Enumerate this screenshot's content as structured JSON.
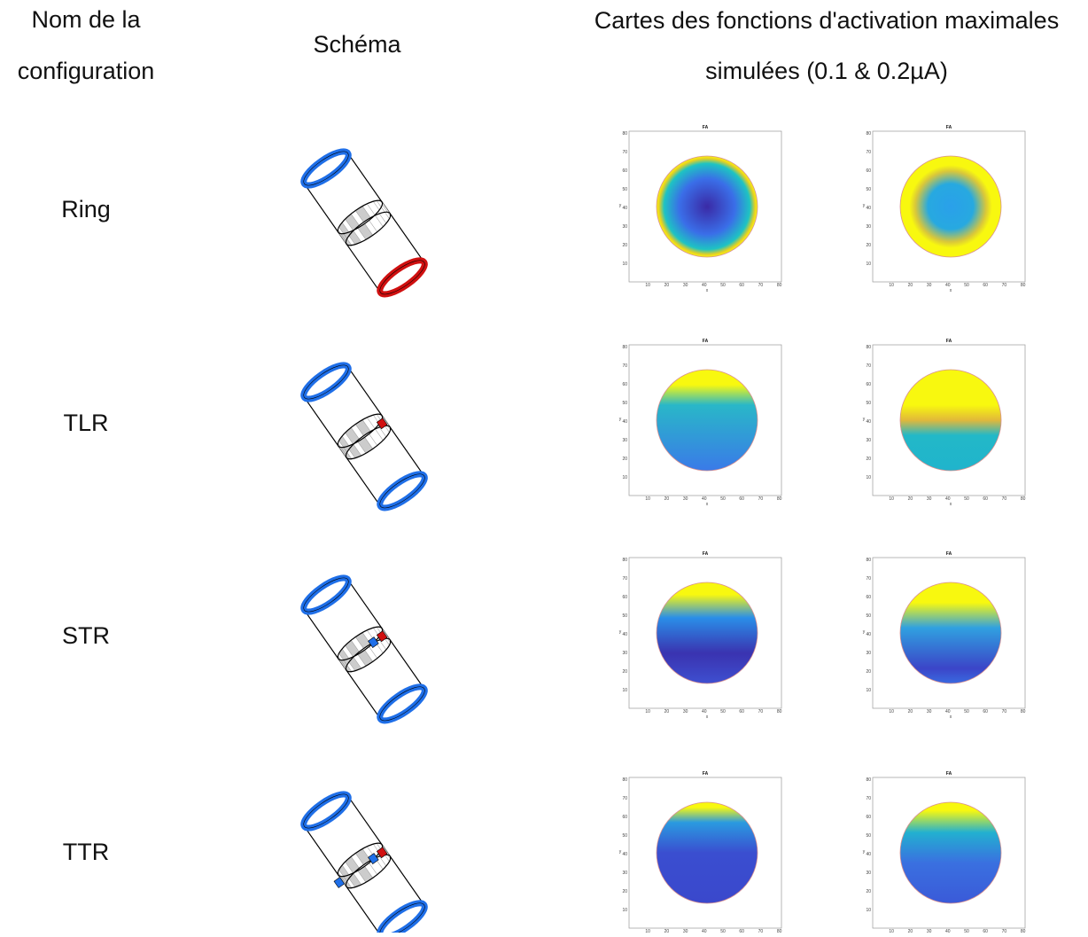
{
  "header": {
    "name_col": [
      "Nom de la",
      "configuration"
    ],
    "schema_col": "Schéma",
    "maps_col": [
      "Cartes des fonctions d'activation maximales",
      "simulées (0.1 & 0.2µA)"
    ]
  },
  "rows": [
    {
      "label": "Ring"
    },
    {
      "label": "TLR"
    },
    {
      "label": "STR"
    },
    {
      "label": "TTR"
    }
  ],
  "plot": {
    "title": "FA",
    "xlabel": "x",
    "ylabel": "y",
    "xticks": [
      10,
      20,
      30,
      40,
      50,
      60,
      70,
      80
    ],
    "yticks": [
      10,
      20,
      30,
      40,
      50,
      60,
      70,
      80
    ]
  }
}
